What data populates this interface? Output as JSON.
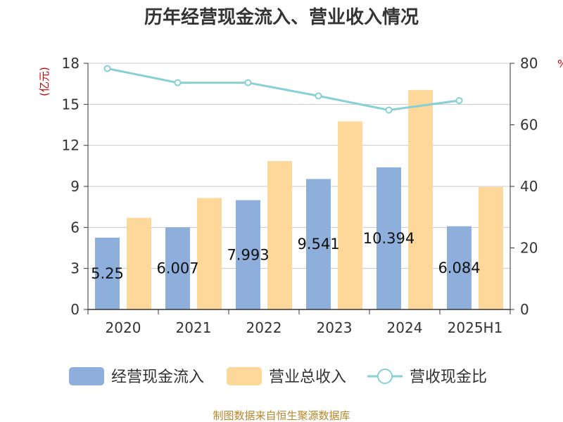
{
  "chart_data": {
    "type": "bar",
    "title": "历年经营现金流入、营业收入情况",
    "categories": [
      "2020",
      "2021",
      "2022",
      "2023",
      "2024",
      "2025H1"
    ],
    "left_axis": {
      "unit": "(亿元)",
      "min": 0,
      "max": 18,
      "ticks": [
        0,
        3,
        6,
        9,
        12,
        15,
        18
      ]
    },
    "right_axis": {
      "unit": "%",
      "min": 0,
      "max": 80,
      "ticks": [
        0,
        20,
        40,
        60,
        80
      ]
    },
    "series": [
      {
        "name": "经营现金流入",
        "type": "bar",
        "axis": "left",
        "color": "#8eaedb",
        "values": [
          5.25,
          6.007,
          7.993,
          9.541,
          10.394,
          6.084
        ],
        "labels": [
          "5.25",
          "6.007",
          "7.993",
          "9.541",
          "10.394",
          "6.084"
        ]
      },
      {
        "name": "营业总收入",
        "type": "bar",
        "axis": "left",
        "color": "#fdd89a",
        "values": [
          6.7,
          8.15,
          10.85,
          13.75,
          16.05,
          8.95
        ]
      },
      {
        "name": "营收现金比",
        "type": "line",
        "axis": "right",
        "color": "#86d0d6",
        "values": [
          78.3,
          73.7,
          73.7,
          69.4,
          64.8,
          67.9
        ]
      }
    ],
    "grid": true,
    "legend_position": "bottom"
  },
  "footer": {
    "source": "制图数据来自恒生聚源数据库"
  }
}
